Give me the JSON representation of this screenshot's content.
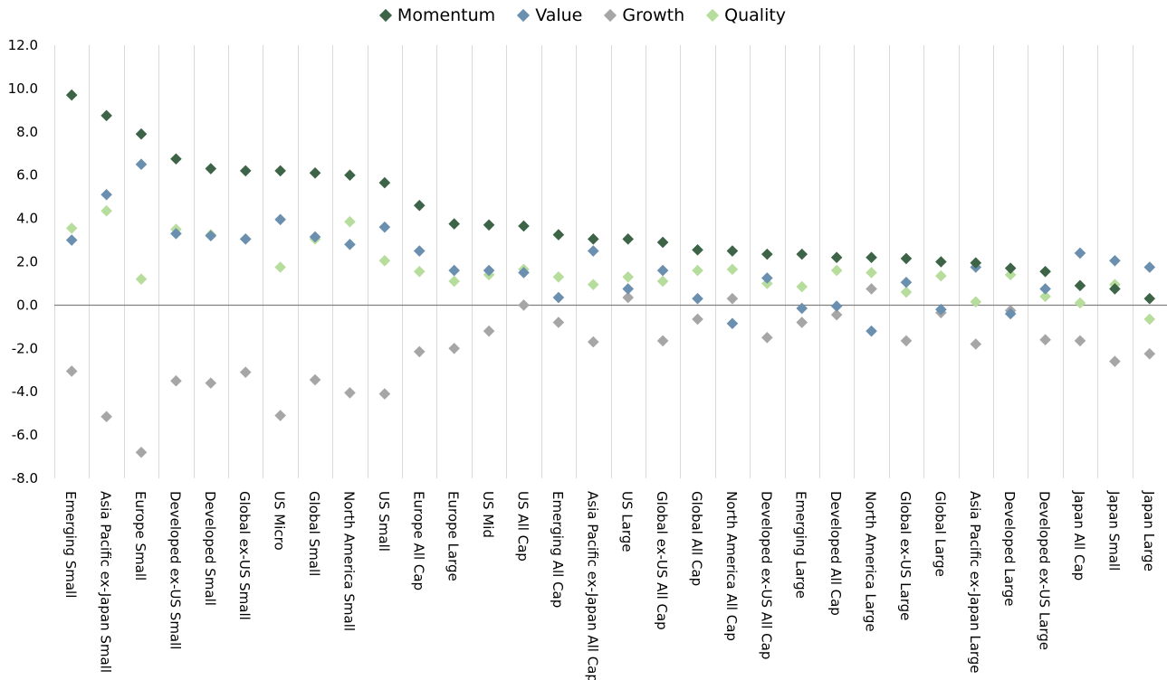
{
  "chart_data": {
    "type": "scatter",
    "title": "",
    "xlabel": "",
    "ylabel": "",
    "ylim": [
      -8,
      12
    ],
    "y_ticks": [
      "12.0",
      "10.0",
      "8.0",
      "6.0",
      "4.0",
      "2.0",
      "0.0",
      "-2.0",
      "-4.0",
      "-6.0",
      "-8.0"
    ],
    "grid": "vertical category gridlines",
    "legend_position": "top",
    "categories": [
      "Emerging Small",
      "Asia Pacific ex-Japan Small",
      "Europe Small",
      "Developed ex-US Small",
      "Developed Small",
      "Global ex-US Small",
      "US Micro",
      "Global Small",
      "North America Small",
      "US Small",
      "Europe All Cap",
      "Europe Large",
      "US Mid",
      "US All Cap",
      "Emerging All Cap",
      "Asia Pacific ex-Japan All Cap",
      "US Large",
      "Global ex-US All Cap",
      "Global All Cap",
      "North America All Cap",
      "Developed ex-US All Cap",
      "Emerging Large",
      "Developed All Cap",
      "North America Large",
      "Global ex-US Large",
      "Global Large",
      "Asia Pacific ex-Japan Large",
      "Developed Large",
      "Developed ex-US Large",
      "Japan All Cap",
      "Japan Small",
      "Japan Large"
    ],
    "series": [
      {
        "name": "Momentum",
        "color": "#3d6447",
        "values": [
          9.7,
          8.75,
          7.9,
          6.75,
          6.3,
          6.2,
          6.2,
          6.1,
          6.0,
          5.65,
          4.6,
          3.75,
          3.7,
          3.65,
          3.25,
          3.05,
          3.05,
          2.9,
          2.55,
          2.5,
          2.35,
          2.35,
          2.2,
          2.2,
          2.15,
          2.0,
          1.95,
          1.7,
          1.55,
          0.9,
          0.75,
          0.3
        ]
      },
      {
        "name": "Value",
        "color": "#6a8faf",
        "values": [
          3.0,
          5.1,
          6.5,
          3.3,
          3.2,
          3.05,
          3.95,
          3.15,
          2.8,
          3.6,
          2.5,
          1.6,
          1.6,
          1.5,
          0.35,
          2.5,
          0.75,
          1.6,
          0.3,
          -0.85,
          1.25,
          -0.15,
          -0.05,
          -1.2,
          1.05,
          -0.2,
          1.75,
          -0.4,
          0.75,
          2.4,
          2.05,
          1.75
        ]
      },
      {
        "name": "Growth",
        "color": "#a6a6a6",
        "values": [
          -3.05,
          -5.15,
          -6.8,
          -3.5,
          -3.6,
          -3.1,
          -5.1,
          -3.45,
          -4.05,
          -4.1,
          -2.15,
          -2.0,
          -1.2,
          0.0,
          -0.8,
          -1.7,
          0.35,
          -1.65,
          -0.65,
          0.3,
          -1.5,
          -0.8,
          -0.45,
          0.75,
          -1.65,
          -0.35,
          -1.8,
          -0.25,
          -1.6,
          -1.65,
          -2.6,
          -2.25
        ]
      },
      {
        "name": "Quality",
        "color": "#b7dd9d",
        "values": [
          3.55,
          4.35,
          1.2,
          3.5,
          3.25,
          3.05,
          1.75,
          3.05,
          3.85,
          2.05,
          1.55,
          1.1,
          1.4,
          1.65,
          1.3,
          0.95,
          1.3,
          1.1,
          1.6,
          1.65,
          1.0,
          0.85,
          1.6,
          1.5,
          0.6,
          1.35,
          0.15,
          1.4,
          0.4,
          0.1,
          0.95,
          -0.65
        ]
      }
    ]
  }
}
